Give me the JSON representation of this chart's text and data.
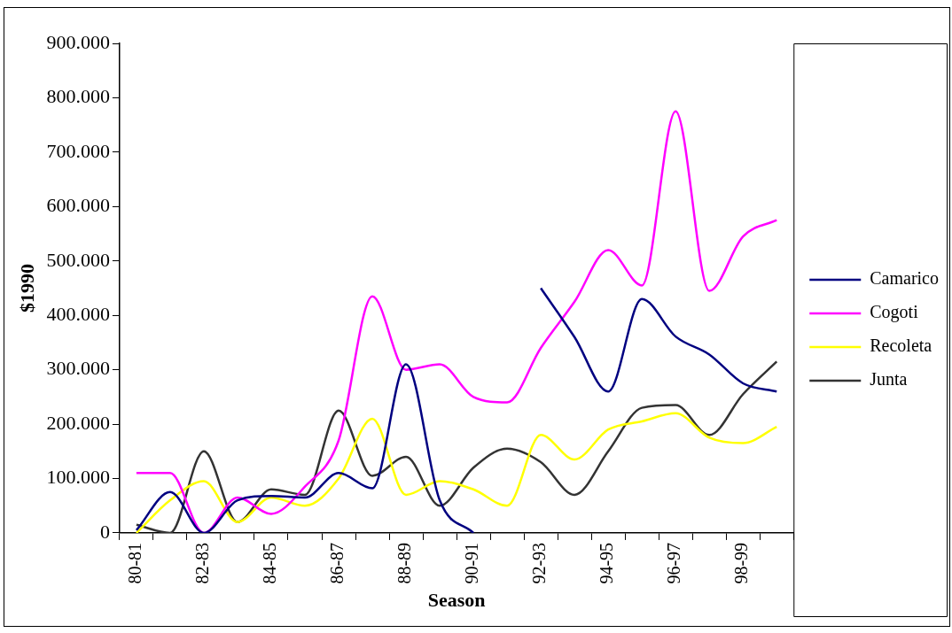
{
  "chart_data": {
    "type": "line",
    "xlabel": "Season",
    "ylabel": "$1990",
    "categories": [
      "80-81",
      null,
      "82-83",
      null,
      "84-85",
      null,
      "86-87",
      null,
      "88-89",
      null,
      "90-91",
      null,
      "92-93",
      null,
      "94-95",
      null,
      "96-97",
      null,
      "98-99",
      null
    ],
    "series": [
      {
        "name": "Camarico",
        "color": "#000080",
        "values": [
          5000,
          75000,
          0,
          60000,
          68000,
          65000,
          110000,
          82000,
          310000,
          60000,
          0,
          null,
          450000,
          360000,
          260000,
          430000,
          361000,
          328000,
          275000,
          260000
        ]
      },
      {
        "name": "Cogoti",
        "color": "#ff00ff",
        "values": [
          110000,
          110000,
          0,
          65000,
          35000,
          85000,
          170000,
          435000,
          300000,
          310000,
          250000,
          240000,
          340000,
          425000,
          520000,
          455000,
          775000,
          445000,
          545000,
          575000
        ]
      },
      {
        "name": "Recoleta",
        "color": "#ffff00",
        "values": [
          0,
          60000,
          95000,
          20000,
          65000,
          50000,
          100000,
          210000,
          70000,
          95000,
          80000,
          50000,
          180000,
          135000,
          190000,
          205000,
          220000,
          175000,
          165000,
          195000
        ]
      },
      {
        "name": "Junta",
        "color": "#333333",
        "values": [
          15000,
          0,
          150000,
          20000,
          80000,
          70000,
          225000,
          105000,
          140000,
          50000,
          120000,
          155000,
          130000,
          70000,
          150000,
          230000,
          235000,
          180000,
          255000,
          315000
        ]
      }
    ],
    "ylim": [
      0,
      900000
    ],
    "yticks": [
      {
        "value": 0,
        "label": "0"
      },
      {
        "value": 100000,
        "label": "100.000"
      },
      {
        "value": 200000,
        "label": "200.000"
      },
      {
        "value": 300000,
        "label": "300.000"
      },
      {
        "value": 400000,
        "label": "400.000"
      },
      {
        "value": 500000,
        "label": "500.000"
      },
      {
        "value": 600000,
        "label": "600.000"
      },
      {
        "value": 700000,
        "label": "700.000"
      },
      {
        "value": 800000,
        "label": "800.000"
      },
      {
        "value": 900000,
        "label": "900.000"
      }
    ],
    "grid": false,
    "legend": "right",
    "marker": "none",
    "line_style": "solid"
  }
}
